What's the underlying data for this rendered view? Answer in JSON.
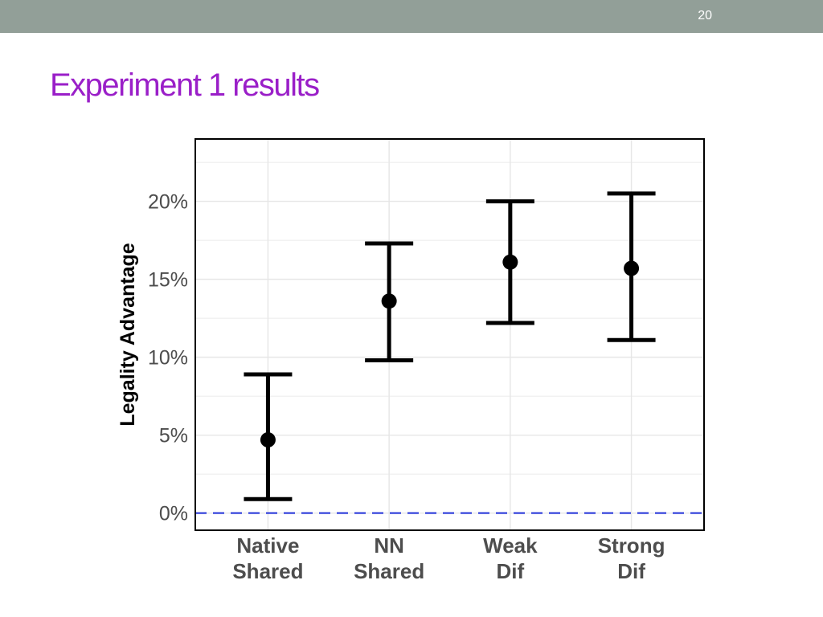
{
  "slide": {
    "number": "20",
    "title": "Experiment 1 results",
    "title_color": "#9a1fc8",
    "bar_color": "#929f98"
  },
  "chart_data": {
    "type": "errorbar",
    "title": "",
    "xlabel": "",
    "ylabel": "Legality Advantage",
    "categories": [
      [
        "Native",
        "Shared"
      ],
      [
        "NN",
        "Shared"
      ],
      [
        "Weak",
        "Dif"
      ],
      [
        "Strong",
        "Dif"
      ]
    ],
    "points": [
      {
        "mean": 4.7,
        "lower": 0.9,
        "upper": 8.9
      },
      {
        "mean": 13.6,
        "lower": 9.8,
        "upper": 17.3
      },
      {
        "mean": 16.1,
        "lower": 12.2,
        "upper": 20.0
      },
      {
        "mean": 15.7,
        "lower": 11.1,
        "upper": 20.5
      }
    ],
    "ylim": [
      -1.1,
      24.0
    ],
    "yticks": [
      0,
      5,
      10,
      15,
      20
    ],
    "ytick_labels": [
      "0%",
      "5%",
      "10%",
      "15%",
      "20%"
    ],
    "reference_line": {
      "y": 0,
      "style": "dashed",
      "color": "#1f2fd6"
    },
    "grid": true,
    "colors": {
      "marks": "#000000",
      "grid": "#e6e6e6",
      "tick_text": "#4d4d4d"
    }
  }
}
